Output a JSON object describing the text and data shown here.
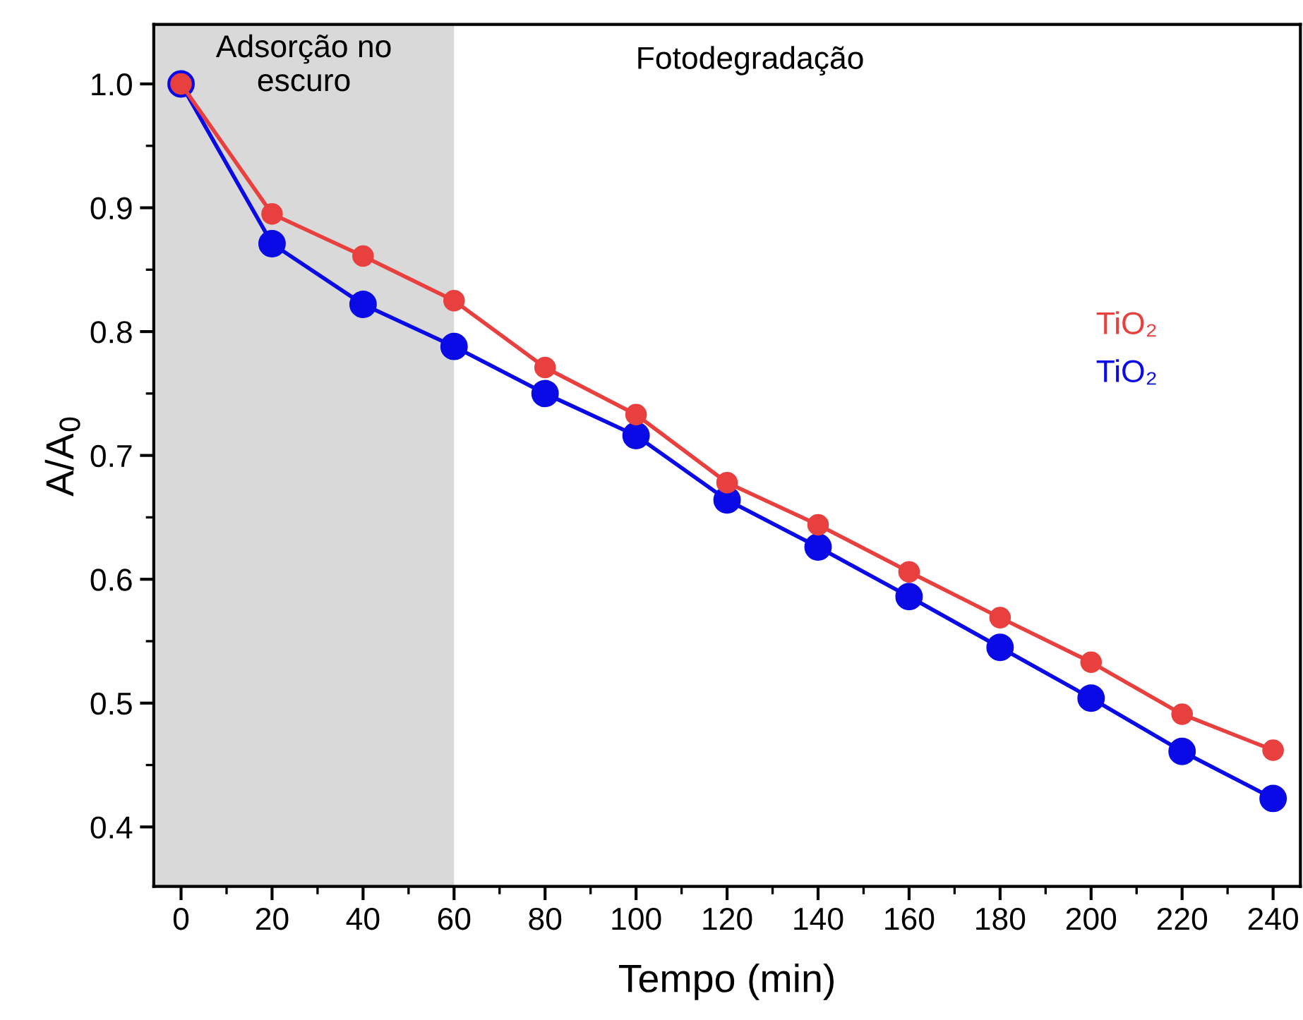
{
  "chart_data": {
    "type": "line",
    "xlabel": "Tempo (min)",
    "ylabel": "A/A$_{0}$",
    "x": [
      0,
      20,
      40,
      60,
      80,
      100,
      120,
      140,
      160,
      180,
      200,
      220,
      240
    ],
    "series": [
      {
        "name": "TiO₂",
        "color": "#e8403f",
        "values": [
          1.0,
          0.895,
          0.861,
          0.825,
          0.771,
          0.733,
          0.678,
          0.644,
          0.606,
          0.569,
          0.533,
          0.491,
          0.462
        ]
      },
      {
        "name": "TiO₂",
        "color": "#0a0ae6",
        "values": [
          1.0,
          0.871,
          0.822,
          0.788,
          0.75,
          0.716,
          0.664,
          0.626,
          0.586,
          0.545,
          0.504,
          0.461,
          0.423
        ]
      }
    ],
    "xlim": [
      -6,
      246
    ],
    "xticks": [
      0,
      20,
      40,
      60,
      80,
      100,
      120,
      140,
      160,
      180,
      200,
      220,
      240
    ],
    "ylim": [
      0.352,
      1.048
    ],
    "yticks": [
      0.4,
      0.5,
      0.6,
      0.7,
      0.8,
      0.9,
      {
        "value": 1.0,
        "label": "1.0"
      }
    ],
    "bands": [
      {
        "axis": "x",
        "from": -6,
        "to": 60,
        "label": "Adsorção no\nescuro",
        "color": "#d9d9d9"
      }
    ],
    "annotations": [
      "Fotodegradação"
    ],
    "marker": "circle",
    "line_style": "solid",
    "grid": false,
    "legend": "upper right"
  }
}
